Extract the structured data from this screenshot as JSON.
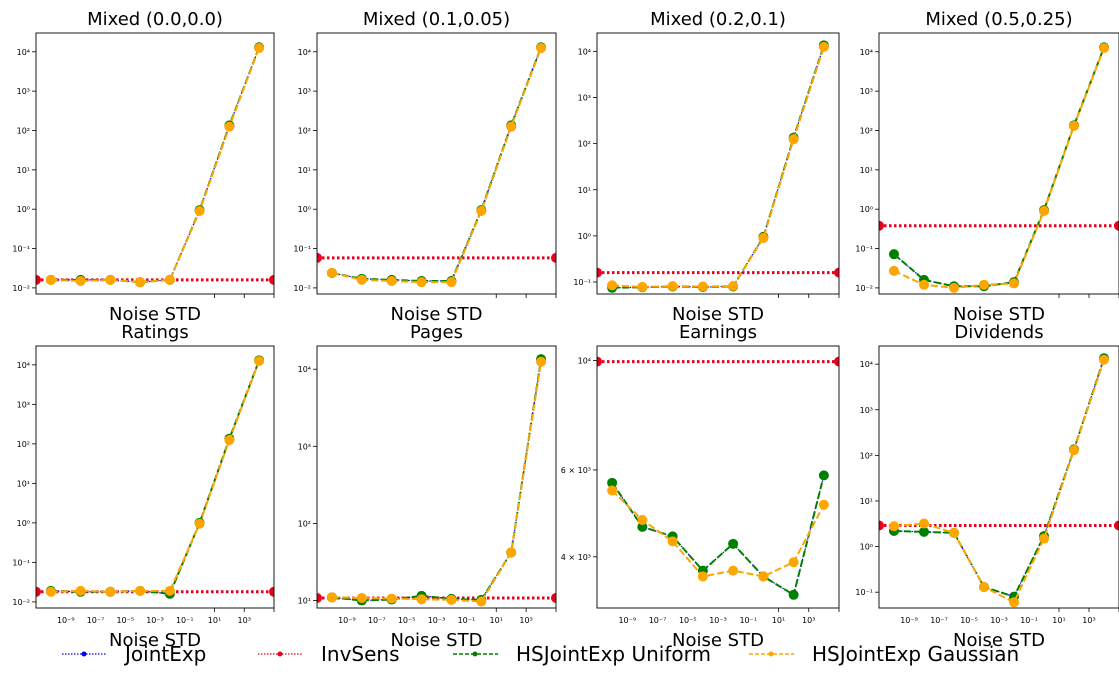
{
  "colors": {
    "JointExp": "#0000ff",
    "InvSens": "#e8001c",
    "HSJointExp Uniform": "#008000",
    "HSJointExp Gaussian": "#ffa500"
  },
  "legend": {
    "placement": "bottom",
    "entries": [
      "JointExp",
      "InvSens",
      "HSJointExp Uniform",
      "HSJointExp Gaussian"
    ]
  },
  "chart_data": [
    {
      "type": "line",
      "title": "Mixed (0.0,0.0)",
      "xlabel": "Noise STD",
      "ylabel": "",
      "xscale": "log",
      "yscale": "log",
      "xlim": [
        1e-11,
        100000.0
      ],
      "ylim": [
        0.007,
        30000
      ],
      "x_ticks": [],
      "x_tick_labels": [],
      "y_ticks": [
        0.01,
        0.1,
        1,
        10,
        100,
        1000,
        10000
      ],
      "y_tick_labels": [
        "10⁻²",
        "10⁻¹",
        "10⁰",
        "10¹",
        "10²",
        "10³",
        "10⁴"
      ],
      "x": [
        1e-10,
        1e-08,
        1e-06,
        0.0001,
        0.01,
        1,
        100,
        10000
      ],
      "series": [
        {
          "name": "JointExp",
          "values": [
            0.016,
            0.016,
            0.016,
            0.014,
            0.016,
            0.95,
            135,
            13000
          ]
        },
        {
          "name": "InvSens",
          "constant": 0.016
        },
        {
          "name": "HSJointExp Uniform",
          "values": [
            0.016,
            0.016,
            0.016,
            0.014,
            0.016,
            0.95,
            135,
            13000
          ]
        },
        {
          "name": "HSJointExp Gaussian",
          "values": [
            0.016,
            0.015,
            0.016,
            0.014,
            0.016,
            0.9,
            125,
            12500
          ]
        }
      ]
    },
    {
      "type": "line",
      "title": "Mixed (0.1,0.05)",
      "xlabel": "Noise STD",
      "ylabel": "",
      "xscale": "log",
      "yscale": "log",
      "xlim": [
        1e-11,
        100000.0
      ],
      "ylim": [
        0.007,
        30000
      ],
      "x_ticks": [],
      "x_tick_labels": [],
      "y_ticks": [
        0.01,
        0.1,
        1,
        10,
        100,
        1000,
        10000
      ],
      "y_tick_labels": [
        "10⁻²",
        "10⁻¹",
        "10⁰",
        "10¹",
        "10²",
        "10³",
        "10⁴"
      ],
      "x": [
        1e-10,
        1e-08,
        1e-06,
        0.0001,
        0.01,
        1,
        100,
        10000
      ],
      "series": [
        {
          "name": "JointExp",
          "values": [
            0.024,
            0.017,
            0.016,
            0.015,
            0.015,
            0.95,
            135,
            13000
          ]
        },
        {
          "name": "InvSens",
          "constant": 0.058
        },
        {
          "name": "HSJointExp Uniform",
          "values": [
            0.024,
            0.017,
            0.016,
            0.015,
            0.015,
            0.95,
            135,
            13000
          ]
        },
        {
          "name": "HSJointExp Gaussian",
          "values": [
            0.024,
            0.016,
            0.015,
            0.014,
            0.014,
            0.9,
            125,
            12500
          ]
        }
      ]
    },
    {
      "type": "line",
      "title": "Mixed (0.2,0.1)",
      "xlabel": "Noise STD",
      "ylabel": "",
      "xscale": "log",
      "yscale": "log",
      "xlim": [
        1e-11,
        100000.0
      ],
      "ylim": [
        0.055,
        25000
      ],
      "x_ticks": [],
      "x_tick_labels": [],
      "y_ticks": [
        0.1,
        1,
        10,
        100,
        1000,
        10000
      ],
      "y_tick_labels": [
        "10⁻¹",
        "10⁰",
        "10¹",
        "10²",
        "10³",
        "10⁴"
      ],
      "x": [
        1e-10,
        1e-08,
        1e-06,
        0.0001,
        0.01,
        1,
        100,
        10000
      ],
      "series": [
        {
          "name": "JointExp",
          "values": [
            0.075,
            0.077,
            0.08,
            0.078,
            0.08,
            0.95,
            135,
            13500
          ]
        },
        {
          "name": "InvSens",
          "constant": 0.16
        },
        {
          "name": "HSJointExp Uniform",
          "values": [
            0.075,
            0.077,
            0.08,
            0.078,
            0.08,
            0.95,
            135,
            13500
          ]
        },
        {
          "name": "HSJointExp Gaussian",
          "values": [
            0.085,
            0.078,
            0.082,
            0.08,
            0.082,
            0.9,
            125,
            12500
          ]
        }
      ]
    },
    {
      "type": "line",
      "title": "Mixed (0.5,0.25)",
      "xlabel": "Noise STD",
      "ylabel": "",
      "xscale": "log",
      "yscale": "log",
      "xlim": [
        1e-11,
        100000.0
      ],
      "ylim": [
        0.007,
        30000
      ],
      "x_ticks": [],
      "x_tick_labels": [],
      "y_ticks": [
        0.01,
        0.1,
        1,
        10,
        100,
        1000,
        10000
      ],
      "y_tick_labels": [
        "10⁻²",
        "10⁻¹",
        "10⁰",
        "10¹",
        "10²",
        "10³",
        "10⁴"
      ],
      "x": [
        1e-10,
        1e-08,
        1e-06,
        0.0001,
        0.01,
        1,
        100,
        10000
      ],
      "series": [
        {
          "name": "JointExp",
          "values": [
            0.072,
            0.016,
            0.011,
            0.011,
            0.014,
            0.95,
            135,
            13000
          ]
        },
        {
          "name": "InvSens",
          "constant": 0.38
        },
        {
          "name": "HSJointExp Uniform",
          "values": [
            0.072,
            0.016,
            0.011,
            0.011,
            0.014,
            0.95,
            135,
            13000
          ]
        },
        {
          "name": "HSJointExp Gaussian",
          "values": [
            0.027,
            0.012,
            0.01,
            0.012,
            0.013,
            0.9,
            130,
            12500
          ]
        }
      ]
    },
    {
      "type": "line",
      "title": "Ratings",
      "xlabel": "Noise STD",
      "ylabel": "",
      "xscale": "log",
      "yscale": "log",
      "xlim": [
        1e-11,
        100000.0
      ],
      "ylim": [
        0.007,
        30000
      ],
      "x_ticks": [
        1e-09,
        1e-07,
        1e-05,
        0.001,
        0.1,
        10,
        1000
      ],
      "x_tick_labels": [
        "10⁻⁹",
        "10⁻⁷",
        "10⁻⁵",
        "10⁻³",
        "10⁻¹",
        "10¹",
        "10³"
      ],
      "y_ticks": [
        0.01,
        0.1,
        1,
        10,
        100,
        1000,
        10000
      ],
      "y_tick_labels": [
        "10⁻²",
        "10⁻¹",
        "10⁰",
        "10¹",
        "10²",
        "10³",
        "10⁴"
      ],
      "x": [
        1e-10,
        1e-08,
        1e-06,
        0.0001,
        0.01,
        1,
        100,
        10000
      ],
      "series": [
        {
          "name": "JointExp",
          "values": [
            0.019,
            0.018,
            0.018,
            0.019,
            0.016,
            1.0,
            135,
            13000
          ]
        },
        {
          "name": "InvSens",
          "constant": 0.018
        },
        {
          "name": "HSJointExp Uniform",
          "values": [
            0.019,
            0.018,
            0.018,
            0.019,
            0.016,
            1.0,
            135,
            13000
          ]
        },
        {
          "name": "HSJointExp Gaussian",
          "values": [
            0.018,
            0.019,
            0.018,
            0.019,
            0.019,
            0.95,
            125,
            12500
          ]
        }
      ]
    },
    {
      "type": "line",
      "title": "Pages",
      "xlabel": "Noise STD",
      "ylabel": "",
      "xscale": "log",
      "yscale": "log",
      "xlim": [
        1e-11,
        100000.0
      ],
      "ylim": [
        8,
        20000
      ],
      "x_ticks": [
        1e-09,
        1e-07,
        1e-05,
        0.001,
        0.1,
        10,
        1000
      ],
      "x_tick_labels": [
        "10⁻⁹",
        "10⁻⁷",
        "10⁻⁵",
        "10⁻³",
        "10⁻¹",
        "10¹",
        "10³"
      ],
      "y_ticks": [
        10,
        100,
        1000,
        10000
      ],
      "y_tick_labels": [
        "10¹",
        "10²",
        "10³",
        "10⁴"
      ],
      "x": [
        1e-10,
        1e-08,
        1e-06,
        0.0001,
        0.01,
        1,
        100,
        10000
      ],
      "series": [
        {
          "name": "JointExp",
          "values": [
            11,
            10,
            10.3,
            11.5,
            10.5,
            10.2,
            42,
            13500
          ]
        },
        {
          "name": "InvSens",
          "constant": 10.8
        },
        {
          "name": "HSJointExp Uniform",
          "values": [
            11,
            10,
            10.3,
            11.5,
            10.5,
            10.2,
            42,
            13500
          ]
        },
        {
          "name": "HSJointExp Gaussian",
          "values": [
            11,
            10.8,
            10.6,
            10.4,
            10.2,
            9.7,
            42,
            12500
          ]
        }
      ]
    },
    {
      "type": "line",
      "title": "Earnings",
      "xlabel": "Noise STD",
      "ylabel": "",
      "xscale": "log",
      "yscale": "log",
      "xlim": [
        1e-11,
        100000.0
      ],
      "ylim": [
        3150,
        10700
      ],
      "x_ticks": [
        1e-09,
        1e-07,
        1e-05,
        0.001,
        0.1,
        10,
        1000
      ],
      "x_tick_labels": [
        "10⁻⁹",
        "10⁻⁷",
        "10⁻⁵",
        "10⁻³",
        "10⁻¹",
        "10¹",
        "10³"
      ],
      "y_ticks": [
        4000,
        6000,
        10000
      ],
      "y_tick_labels": [
        "4 × 10³",
        "6 × 10³",
        "10⁴"
      ],
      "x": [
        1e-10,
        1e-08,
        1e-06,
        0.0001,
        0.01,
        1,
        100,
        10000
      ],
      "series": [
        {
          "name": "JointExp",
          "values": [
            5650,
            4600,
            4400,
            3750,
            4250,
            3650,
            3350,
            5850
          ]
        },
        {
          "name": "InvSens",
          "constant": 9950
        },
        {
          "name": "HSJointExp Uniform",
          "values": [
            5650,
            4600,
            4400,
            3750,
            4250,
            3650,
            3350,
            5850
          ]
        },
        {
          "name": "HSJointExp Gaussian",
          "values": [
            5450,
            4750,
            4300,
            3650,
            3750,
            3650,
            3900,
            5100
          ]
        }
      ]
    },
    {
      "type": "line",
      "title": "Dividends",
      "xlabel": "Noise STD",
      "ylabel": "",
      "xscale": "log",
      "yscale": "log",
      "xlim": [
        1e-11,
        100000.0
      ],
      "ylim": [
        0.045,
        25000
      ],
      "x_ticks": [
        1e-09,
        1e-07,
        1e-05,
        0.001,
        0.1,
        10,
        1000
      ],
      "x_tick_labels": [
        "10⁻⁹",
        "10⁻⁷",
        "10⁻⁵",
        "10⁻³",
        "10⁻¹",
        "10¹",
        "10³"
      ],
      "y_ticks": [
        0.1,
        1,
        10,
        100,
        1000,
        10000
      ],
      "y_tick_labels": [
        "10⁻¹",
        "10⁰",
        "10¹",
        "10²",
        "10³",
        "10⁴"
      ],
      "x": [
        1e-10,
        1e-08,
        1e-06,
        0.0001,
        0.01,
        1,
        100,
        10000
      ],
      "series": [
        {
          "name": "JointExp",
          "values": [
            2.2,
            2.1,
            2.0,
            0.13,
            0.08,
            1.7,
            135,
            13500
          ]
        },
        {
          "name": "InvSens",
          "constant": 2.9
        },
        {
          "name": "HSJointExp Uniform",
          "values": [
            2.2,
            2.1,
            2.0,
            0.13,
            0.08,
            1.7,
            135,
            13500
          ]
        },
        {
          "name": "HSJointExp Gaussian",
          "values": [
            2.8,
            3.2,
            2.0,
            0.13,
            0.06,
            1.5,
            130,
            12500
          ]
        }
      ]
    }
  ]
}
